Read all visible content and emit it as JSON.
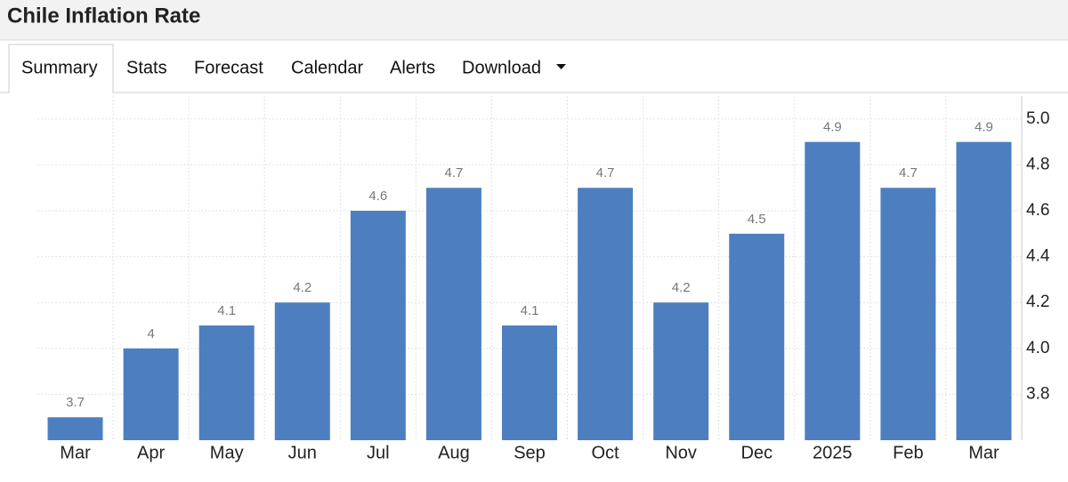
{
  "tabs": [
    "Summary",
    "Stats",
    "Forecast",
    "Calendar",
    "Alerts",
    "Download"
  ],
  "chart_data": {
    "type": "bar",
    "title": "Chile Inflation Rate",
    "categories": [
      "Mar",
      "Apr",
      "May",
      "Jun",
      "Jul",
      "Aug",
      "Sep",
      "Oct",
      "Nov",
      "Dec",
      "2025",
      "Feb",
      "Mar"
    ],
    "values": [
      3.7,
      4,
      4.1,
      4.2,
      4.6,
      4.7,
      4.1,
      4.7,
      4.2,
      4.5,
      4.9,
      4.7,
      4.9
    ],
    "color": "#4d7fc0",
    "ylim": [
      3.6,
      5.1
    ],
    "yticks": [
      3.8,
      {
        "value": 4,
        "label": "4.0"
      },
      4.2,
      4.4,
      4.6,
      4.8,
      {
        "value": 5,
        "label": "5.0"
      }
    ],
    "grid": true
  }
}
